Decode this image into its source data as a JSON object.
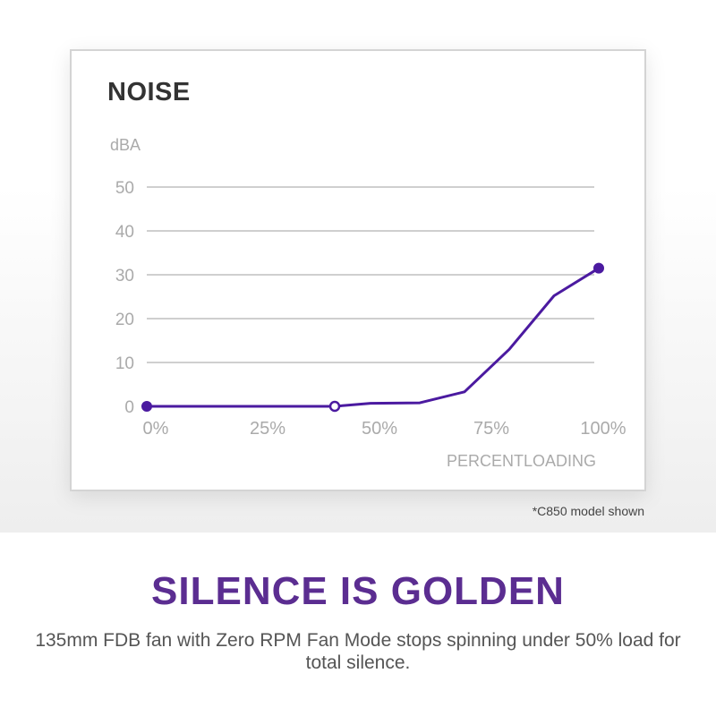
{
  "chart_data": {
    "type": "line",
    "title": "NOISE",
    "ylabel": "dBA",
    "xlabel": "PERCENTLOADING",
    "x_ticks": [
      "0%",
      "25%",
      "50%",
      "75%",
      "100%"
    ],
    "y_ticks": [
      "0",
      "10",
      "20",
      "30",
      "40",
      "50"
    ],
    "xlim": [
      0,
      100
    ],
    "ylim": [
      0,
      50
    ],
    "grid": true,
    "line_color": "#4b1aa0",
    "series": [
      {
        "points": [
          {
            "x": 0,
            "y": 0,
            "marker": "filled"
          },
          {
            "x": 42,
            "y": 0,
            "marker": "open"
          },
          {
            "x": 50,
            "y": 0.7
          },
          {
            "x": 61,
            "y": 0.8
          },
          {
            "x": 71,
            "y": 3.3
          },
          {
            "x": 81,
            "y": 13
          },
          {
            "x": 91,
            "y": 25.2
          },
          {
            "x": 101,
            "y": 31.5,
            "marker": "filled"
          }
        ]
      }
    ]
  },
  "footnote": "*C850 model shown",
  "headline": "SILENCE IS GOLDEN",
  "description": "135mm FDB fan with Zero RPM Fan Mode stops spinning under 50% load for total silence."
}
